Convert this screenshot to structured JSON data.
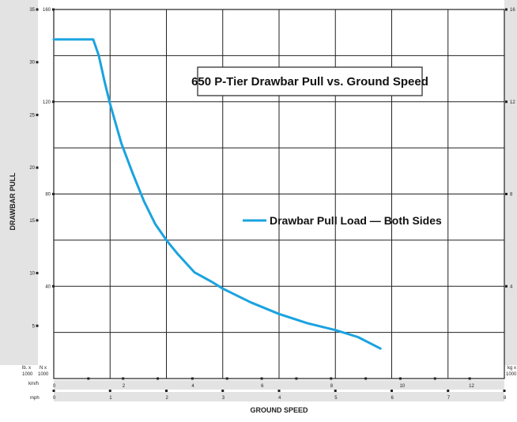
{
  "chart_data": {
    "type": "line",
    "title": "650 P-Tier Drawbar Pull vs. Ground Speed",
    "xlabel": "GROUND SPEED",
    "ylabel": "DRAWBAR PULL",
    "legend_placement": "center-right",
    "grid": true,
    "series": [
      {
        "name": "Drawbar Pull Load — Both Sides",
        "color": "#1aa3e0",
        "x": [
          0,
          0.7,
          0.8,
          0.9,
          1.0,
          1.2,
          1.4,
          1.6,
          1.8,
          2.0,
          2.2,
          2.5,
          2.8,
          3.0,
          3.5,
          4.0,
          4.5,
          5.0,
          5.4,
          5.8
        ],
        "y": [
          147,
          147,
          140,
          129,
          119,
          102,
          89,
          77,
          67,
          60,
          54,
          46,
          42,
          39,
          33,
          28,
          24,
          21,
          18,
          13
        ]
      }
    ],
    "axes": {
      "lbx1000": {
        "range": [
          0,
          35
        ],
        "ticks": [
          "5",
          "10",
          "15",
          "20",
          "25",
          "30",
          "35"
        ],
        "unit_label": "lb. x 1000"
      },
      "nx1000": {
        "range": [
          0,
          160
        ],
        "ticks": [
          "40",
          "80",
          "120",
          "160"
        ],
        "unit_label": "N x 1000"
      },
      "kgx1000": {
        "range": [
          0,
          16
        ],
        "ticks": [
          "4",
          "8",
          "12",
          "16"
        ],
        "unit_label": "kg x 1000"
      },
      "kmh": {
        "range": [
          0,
          13
        ],
        "ticks": [
          "0",
          "2",
          "4",
          "6",
          "8",
          "10",
          "12"
        ],
        "unit_label": "km/h"
      },
      "mph": {
        "range": [
          0,
          8
        ],
        "ticks": [
          "0",
          "1",
          "2",
          "3",
          "4",
          "5",
          "6",
          "7",
          "8"
        ],
        "unit_label": "mph"
      }
    }
  }
}
